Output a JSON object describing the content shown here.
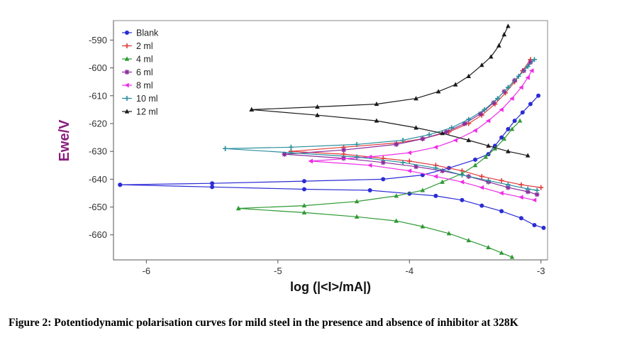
{
  "caption": "Figure 2: Potentiodynamic polarisation curves for mild steel in the presence and absence of inhibitor at 328K",
  "chart_data": {
    "type": "line",
    "title": "",
    "xlabel": "log (|<I>/mA|)",
    "ylabel": "Ewe/V",
    "xlim": [
      -6.25,
      -2.95
    ],
    "ylim": [
      -669,
      -583
    ],
    "xticks": [
      -6,
      -5,
      -4,
      -3
    ],
    "xtick_labels": [
      "-6",
      "-5",
      "-4",
      "-3"
    ],
    "yticks": [
      -590,
      -600,
      -610,
      -620,
      -630,
      -640,
      -650,
      -660
    ],
    "ytick_labels": [
      "-590",
      "-600",
      "-610",
      "-620",
      "-630",
      "-640",
      "-650",
      "-660"
    ],
    "grid": false,
    "legend_position": "top-left",
    "series": [
      {
        "name": "Blank",
        "color": "#2b2bd6",
        "marker": "circle",
        "anodic": [
          [
            -6.2,
            -642
          ],
          [
            -5.5,
            -641.5
          ],
          [
            -4.8,
            -640.7
          ],
          [
            -4.2,
            -640
          ],
          [
            -3.9,
            -638.5
          ],
          [
            -3.7,
            -636
          ],
          [
            -3.5,
            -633
          ],
          [
            -3.4,
            -631
          ],
          [
            -3.35,
            -628
          ],
          [
            -3.3,
            -625
          ],
          [
            -3.25,
            -622
          ],
          [
            -3.2,
            -619
          ],
          [
            -3.14,
            -616
          ],
          [
            -3.08,
            -613
          ],
          [
            -3.02,
            -610
          ]
        ],
        "cathodic": [
          [
            -6.2,
            -642
          ],
          [
            -5.5,
            -642.8
          ],
          [
            -4.8,
            -643.6
          ],
          [
            -4.3,
            -644
          ],
          [
            -4.0,
            -645.2
          ],
          [
            -3.8,
            -646
          ],
          [
            -3.6,
            -647.5
          ],
          [
            -3.45,
            -649.5
          ],
          [
            -3.3,
            -651.5
          ],
          [
            -3.15,
            -654
          ],
          [
            -3.05,
            -656.5
          ],
          [
            -2.98,
            -657.5
          ]
        ]
      },
      {
        "name": "2 ml",
        "color": "#e03a3a",
        "marker": "plus",
        "anodic": [
          [
            -4.9,
            -630
          ],
          [
            -4.5,
            -628.5
          ],
          [
            -4.1,
            -627
          ],
          [
            -3.9,
            -625.5
          ],
          [
            -3.7,
            -623
          ],
          [
            -3.55,
            -620
          ],
          [
            -3.45,
            -617
          ],
          [
            -3.35,
            -613
          ],
          [
            -3.27,
            -609
          ],
          [
            -3.2,
            -605
          ],
          [
            -3.14,
            -601
          ],
          [
            -3.08,
            -597
          ]
        ],
        "cathodic": [
          [
            -4.9,
            -630
          ],
          [
            -4.5,
            -631
          ],
          [
            -4.2,
            -632.5
          ],
          [
            -4.0,
            -633.5
          ],
          [
            -3.8,
            -635
          ],
          [
            -3.6,
            -637
          ],
          [
            -3.45,
            -639
          ],
          [
            -3.3,
            -640.5
          ],
          [
            -3.15,
            -642
          ],
          [
            -3.0,
            -643
          ]
        ]
      },
      {
        "name": "4 ml",
        "color": "#2f9a35",
        "marker": "triangle",
        "anodic": [
          [
            -5.3,
            -650.5
          ],
          [
            -4.8,
            -649.5
          ],
          [
            -4.4,
            -648
          ],
          [
            -4.1,
            -646
          ],
          [
            -3.9,
            -644
          ],
          [
            -3.75,
            -641
          ],
          [
            -3.6,
            -638
          ],
          [
            -3.5,
            -635
          ],
          [
            -3.42,
            -632
          ],
          [
            -3.35,
            -629
          ],
          [
            -3.28,
            -625.5
          ],
          [
            -3.22,
            -622
          ],
          [
            -3.16,
            -619
          ]
        ],
        "cathodic": [
          [
            -5.3,
            -650.5
          ],
          [
            -4.8,
            -652
          ],
          [
            -4.4,
            -653.5
          ],
          [
            -4.1,
            -655
          ],
          [
            -3.9,
            -657
          ],
          [
            -3.7,
            -659.5
          ],
          [
            -3.55,
            -662
          ],
          [
            -3.4,
            -664.5
          ],
          [
            -3.3,
            -666.5
          ],
          [
            -3.22,
            -668
          ]
        ]
      },
      {
        "name": "6 ml",
        "color": "#8b2c9c",
        "marker": "star",
        "anodic": [
          [
            -4.95,
            -631
          ],
          [
            -4.5,
            -629.5
          ],
          [
            -4.1,
            -627.5
          ],
          [
            -3.9,
            -625.5
          ],
          [
            -3.72,
            -623
          ],
          [
            -3.58,
            -620
          ],
          [
            -3.46,
            -616.5
          ],
          [
            -3.36,
            -612.5
          ],
          [
            -3.28,
            -608.5
          ],
          [
            -3.2,
            -604.5
          ],
          [
            -3.13,
            -601
          ],
          [
            -3.08,
            -598
          ]
        ],
        "cathodic": [
          [
            -4.95,
            -631
          ],
          [
            -4.5,
            -632.5
          ],
          [
            -4.2,
            -634
          ],
          [
            -3.95,
            -635.5
          ],
          [
            -3.75,
            -637
          ],
          [
            -3.55,
            -639
          ],
          [
            -3.4,
            -641
          ],
          [
            -3.25,
            -643
          ],
          [
            -3.1,
            -644.5
          ],
          [
            -3.03,
            -645.5
          ]
        ]
      },
      {
        "name": "8 ml",
        "color": "#ee2ee8",
        "marker": "triangle-left",
        "anodic": [
          [
            -4.75,
            -633.5
          ],
          [
            -4.3,
            -632
          ],
          [
            -4.0,
            -630.5
          ],
          [
            -3.8,
            -628.5
          ],
          [
            -3.65,
            -626
          ],
          [
            -3.5,
            -622.5
          ],
          [
            -3.4,
            -619
          ],
          [
            -3.3,
            -615
          ],
          [
            -3.22,
            -611
          ],
          [
            -3.15,
            -607
          ],
          [
            -3.1,
            -603.5
          ],
          [
            -3.07,
            -601
          ]
        ],
        "cathodic": [
          [
            -4.75,
            -633.5
          ],
          [
            -4.3,
            -635
          ],
          [
            -4.0,
            -637
          ],
          [
            -3.8,
            -639
          ],
          [
            -3.6,
            -641
          ],
          [
            -3.45,
            -643
          ],
          [
            -3.3,
            -645
          ],
          [
            -3.15,
            -646.5
          ],
          [
            -3.05,
            -647.5
          ]
        ]
      },
      {
        "name": "10 ml",
        "color": "#2a8e9e",
        "marker": "plus",
        "anodic": [
          [
            -5.4,
            -629
          ],
          [
            -4.9,
            -628.5
          ],
          [
            -4.4,
            -627.5
          ],
          [
            -4.05,
            -626
          ],
          [
            -3.85,
            -624
          ],
          [
            -3.68,
            -621.5
          ],
          [
            -3.55,
            -618.5
          ],
          [
            -3.43,
            -615
          ],
          [
            -3.33,
            -611
          ],
          [
            -3.25,
            -607
          ],
          [
            -3.17,
            -603
          ],
          [
            -3.1,
            -599.5
          ],
          [
            -3.05,
            -597
          ]
        ],
        "cathodic": [
          [
            -5.4,
            -629
          ],
          [
            -4.9,
            -630.5
          ],
          [
            -4.4,
            -632
          ],
          [
            -4.05,
            -634
          ],
          [
            -3.8,
            -636
          ],
          [
            -3.6,
            -638.5
          ],
          [
            -3.4,
            -640.5
          ],
          [
            -3.25,
            -642
          ],
          [
            -3.1,
            -643.5
          ],
          [
            -3.03,
            -644
          ]
        ]
      },
      {
        "name": "12 ml",
        "color": "#1a1a1a",
        "marker": "triangle",
        "anodic": [
          [
            -5.2,
            -615
          ],
          [
            -4.7,
            -614
          ],
          [
            -4.25,
            -613
          ],
          [
            -3.95,
            -611
          ],
          [
            -3.78,
            -608.5
          ],
          [
            -3.65,
            -606
          ],
          [
            -3.55,
            -603
          ],
          [
            -3.45,
            -599
          ],
          [
            -3.38,
            -596
          ],
          [
            -3.32,
            -592
          ],
          [
            -3.28,
            -588
          ],
          [
            -3.25,
            -585
          ]
        ],
        "cathodic": [
          [
            -5.2,
            -615
          ],
          [
            -4.7,
            -617
          ],
          [
            -4.25,
            -619
          ],
          [
            -3.95,
            -621.5
          ],
          [
            -3.75,
            -623.5
          ],
          [
            -3.55,
            -626
          ],
          [
            -3.4,
            -628
          ],
          [
            -3.25,
            -630
          ],
          [
            -3.1,
            -631.5
          ]
        ]
      }
    ]
  }
}
